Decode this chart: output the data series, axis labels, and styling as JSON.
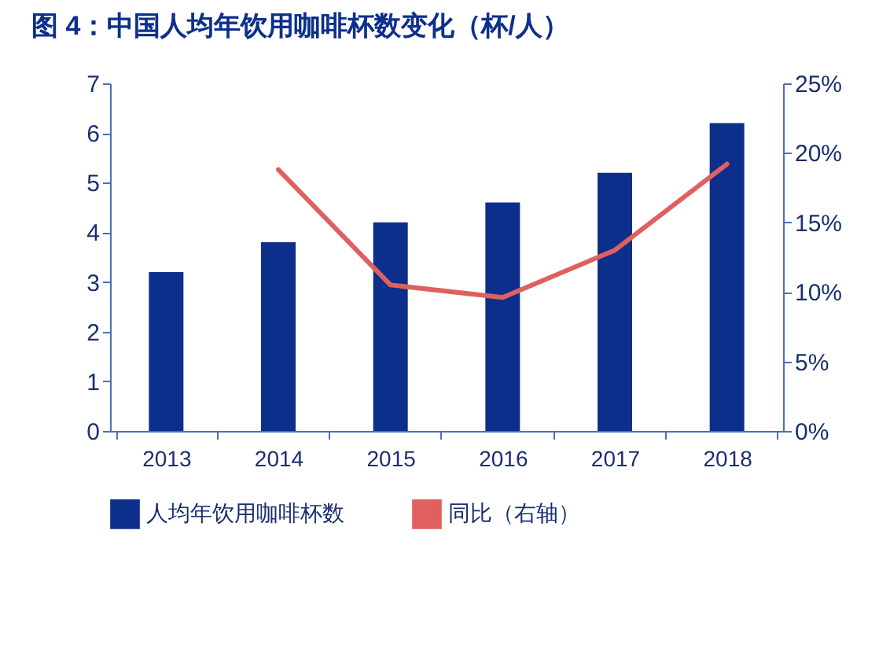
{
  "chart_data": {
    "type": "bar",
    "title": "图 4：中国人均年饮用咖啡杯数变化（杯/人）",
    "categories": [
      "2013",
      "2014",
      "2015",
      "2016",
      "2017",
      "2018"
    ],
    "series": [
      {
        "name": "人均年饮用咖啡杯数",
        "color": "#0d2f8c",
        "values": [
          3.2,
          3.8,
          4.2,
          4.6,
          5.2,
          6.2
        ]
      },
      {
        "name": "同比（右轴）",
        "type": "line",
        "axis": "y2",
        "color": "#e0605f",
        "values": [
          null,
          18.8,
          10.5,
          9.6,
          13.0,
          19.2
        ]
      }
    ],
    "ylim": [
      0,
      7
    ],
    "yticks": [
      0,
      1,
      2,
      3,
      4,
      5,
      6,
      7
    ],
    "y2lim": [
      0,
      25
    ],
    "y2ticks": [
      {
        "value": 0,
        "label": "0%"
      },
      {
        "value": 5,
        "label": "5%"
      },
      {
        "value": 10,
        "label": "10%"
      },
      {
        "value": 15,
        "label": "15%"
      },
      {
        "value": 20,
        "label": "20%"
      },
      {
        "value": 25,
        "label": "25%"
      }
    ],
    "grid": false,
    "legend": "bottom"
  }
}
